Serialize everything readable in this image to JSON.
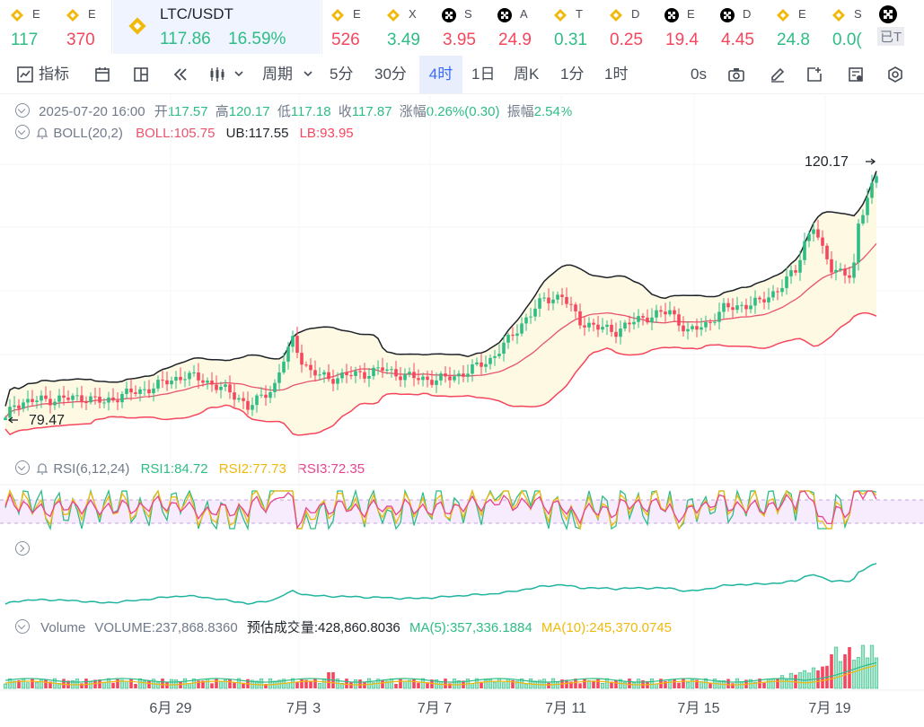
{
  "tickers": [
    {
      "name": "E",
      "change": "117",
      "dir": "up",
      "icon": "binance"
    },
    {
      "name": "E",
      "change": "370",
      "dir": "dn",
      "icon": "binance"
    },
    {
      "name": "LTC/USDT",
      "price": "117.86",
      "change": "16.59%",
      "dir": "up",
      "icon": "binance",
      "active": true
    },
    {
      "name": "E",
      "change": "526",
      "dir": "dn",
      "icon": "binance"
    },
    {
      "name": "X",
      "change": "3.49",
      "dir": "up",
      "icon": "binance"
    },
    {
      "name": "S",
      "change": "3.95",
      "dir": "dn",
      "icon": "okx"
    },
    {
      "name": "A",
      "change": "24.9",
      "dir": "dn",
      "icon": "okx"
    },
    {
      "name": "T",
      "change": "0.31",
      "dir": "up",
      "icon": "binance"
    },
    {
      "name": "D",
      "change": "0.25",
      "dir": "dn",
      "icon": "binance"
    },
    {
      "name": "E",
      "change": "19.4",
      "dir": "dn",
      "icon": "okx"
    },
    {
      "name": "D",
      "change": "4.45",
      "dir": "dn",
      "icon": "okx"
    },
    {
      "name": "E",
      "change": "24.8",
      "dir": "up",
      "icon": "binance"
    },
    {
      "name": "S",
      "change": "0.0(",
      "dir": "up",
      "icon": "binance"
    },
    {
      "name": "",
      "change": "已T",
      "dir": "muted",
      "icon": "okx"
    }
  ],
  "toolbar": {
    "indicator": "指标",
    "period": "周期",
    "intervals": [
      "5分",
      "30分",
      "4时",
      "1日",
      "周K",
      "1分",
      "1时"
    ],
    "active_interval": "4时",
    "countdown": "0s"
  },
  "ohlc": {
    "date": "2025-07-20 16:00",
    "open_label": "开",
    "open": "117.57",
    "high_label": "高",
    "high": "120.17",
    "low_label": "低",
    "low": "117.18",
    "close_label": "收",
    "close": "117.87",
    "change_label": "涨幅",
    "change": "0.26%(0.30)",
    "amp_label": "振幅",
    "amp": "2.54%"
  },
  "boll": {
    "label": "BOLL(20,2)",
    "boll": "BOLL:105.75",
    "ub": "UB:117.55",
    "lb": "LB:93.95"
  },
  "rsi": {
    "label": "RSI(6,12,24)",
    "rsi1": "RSI1:84.72",
    "rsi2": "RSI2:77.73",
    "rsi3": "RSI3:72.35"
  },
  "volume": {
    "label": "Volume",
    "vol": "VOLUME:237,868.8360",
    "est": "预估成交量:428,860.8036",
    "ma5": "MA(5):357,336.1884",
    "ma10": "MA(10):245,370.0745"
  },
  "colors": {
    "up": "#2ebd85",
    "down": "#f6465d",
    "boll_mid": "#e8546e",
    "band": "#fef9e3",
    "rsi1": "#2ebd85",
    "rsi2": "#f0b90b",
    "rsi3": "#e84393",
    "accent": "#3b6cf6"
  },
  "chart_data": {
    "type": "candlestick",
    "high_marker": "120.17",
    "low_marker": "79.47",
    "date_labels": [
      "6月 29",
      "7月 3",
      "7月 7",
      "7月 11",
      "7月 15",
      "7月 19"
    ],
    "series": [
      {
        "name": "BOLL",
        "values": "mid-band"
      },
      {
        "name": "UB",
        "values": "upper-band"
      },
      {
        "name": "LB",
        "values": "lower-band"
      }
    ],
    "price_scale": {
      "p_high": 120.17,
      "p_low": 79.47
    }
  }
}
